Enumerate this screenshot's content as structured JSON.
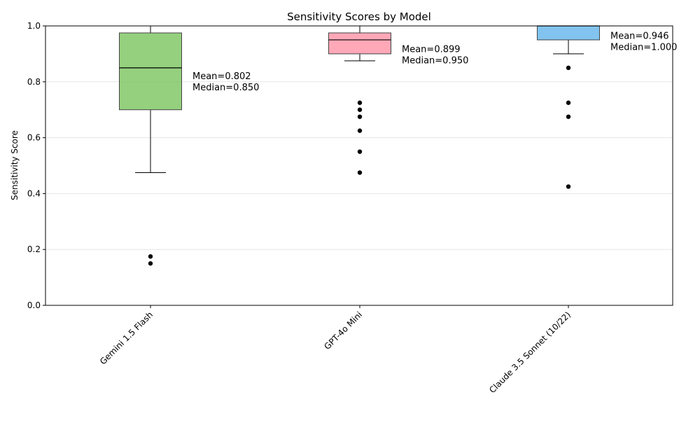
{
  "chart_data": {
    "type": "box",
    "title": "Sensitivity Scores by Model",
    "xlabel": "",
    "ylabel": "Sensitivity Score",
    "ylim": [
      0,
      1.0
    ],
    "yticks": [
      0.0,
      0.2,
      0.4,
      0.6,
      0.8,
      1.0
    ],
    "ytick_labels": [
      "0.0",
      "0.2",
      "0.4",
      "0.6",
      "0.8",
      "1.0"
    ],
    "grid": "y-axis, light",
    "categories": [
      "Gemini 1.5 Flash",
      "GPT-4o Mini",
      "Claude 3.5 Sonnet (10/22)"
    ],
    "boxes": [
      {
        "name": "Gemini 1.5 Flash",
        "color": "#77c35a",
        "whisker_low": 0.475,
        "q1": 0.7,
        "median": 0.85,
        "q3": 0.975,
        "whisker_high": 1.0,
        "outliers": [
          0.175,
          0.15
        ],
        "mean": 0.802,
        "annotation": [
          "Mean=0.802",
          "Median=0.850"
        ]
      },
      {
        "name": "GPT-4o Mini",
        "color": "#ff8fa3",
        "whisker_low": 0.875,
        "q1": 0.9,
        "median": 0.95,
        "q3": 0.975,
        "whisker_high": 1.0,
        "outliers": [
          0.725,
          0.7,
          0.675,
          0.625,
          0.55,
          0.475
        ],
        "mean": 0.899,
        "annotation": [
          "Mean=0.899",
          "Median=0.950"
        ]
      },
      {
        "name": "Claude 3.5 Sonnet (10/22)",
        "color": "#5fb3ea",
        "whisker_low": 0.9,
        "q1": 0.95,
        "median": 1.0,
        "q3": 1.0,
        "whisker_high": 1.0,
        "outliers": [
          0.85,
          0.725,
          0.675,
          0.425
        ],
        "mean": 0.946,
        "annotation": [
          "Mean=0.946",
          "Median=1.000"
        ]
      }
    ]
  }
}
